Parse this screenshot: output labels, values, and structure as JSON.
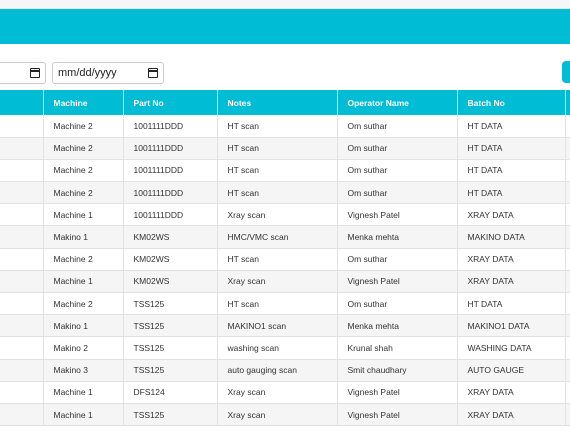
{
  "filters": {
    "to_date_placeholder": "mm/dd/yyyy"
  },
  "table": {
    "columns": [
      "Machine",
      "Part No",
      "Notes",
      "Operator Name",
      "Batch No"
    ],
    "rows": [
      [
        "Machine 2",
        "1001111DDD",
        "HT scan",
        "Om suthar",
        "HT DATA"
      ],
      [
        "Machine 2",
        "1001111DDD",
        "HT scan",
        "Om suthar",
        "HT DATA"
      ],
      [
        "Machine 2",
        "1001111DDD",
        "HT scan",
        "Om suthar",
        "HT DATA"
      ],
      [
        "Machine 2",
        "1001111DDD",
        "HT scan",
        "Om suthar",
        "HT DATA"
      ],
      [
        "Machine 1",
        "1001111DDD",
        "Xray scan",
        "Vignesh Patel",
        "XRAY DATA"
      ],
      [
        "Makino 1",
        "KM02WS",
        "HMC/VMC scan",
        "Menka mehta",
        "MAKINO DATA"
      ],
      [
        "Machine 2",
        "KM02WS",
        "HT scan",
        "Om suthar",
        "XRAY DATA"
      ],
      [
        "Machine 1",
        "KM02WS",
        "Xray scan",
        "Vignesh Patel",
        "XRAY DATA"
      ],
      [
        "Machine 2",
        "TSS125",
        "HT scan",
        "Om suthar",
        "HT DATA"
      ],
      [
        "Makino 1",
        "TSS125",
        "MAKINO1 scan",
        "Menka mehta",
        "MAKINO1 DATA"
      ],
      [
        "Makino 2",
        "TSS125",
        "washing scan",
        "Krunal shah",
        "WASHING DATA"
      ],
      [
        "Makino 3",
        "TSS125",
        "auto gauging scan",
        "Smit chaudhary",
        "AUTO GAUGE"
      ],
      [
        "Machine 1",
        "DFS124",
        "Xray scan",
        "Vignesh Patel",
        "XRAY DATA"
      ],
      [
        "Machine 1",
        "TSS125",
        "Xray scan",
        "Vignesh Patel",
        "XRAY DATA"
      ]
    ]
  },
  "colors": {
    "accent": "#00bcd4",
    "row_alt": "#f5f5f5"
  },
  "icons": {
    "date_picker": "calendar-icon"
  }
}
